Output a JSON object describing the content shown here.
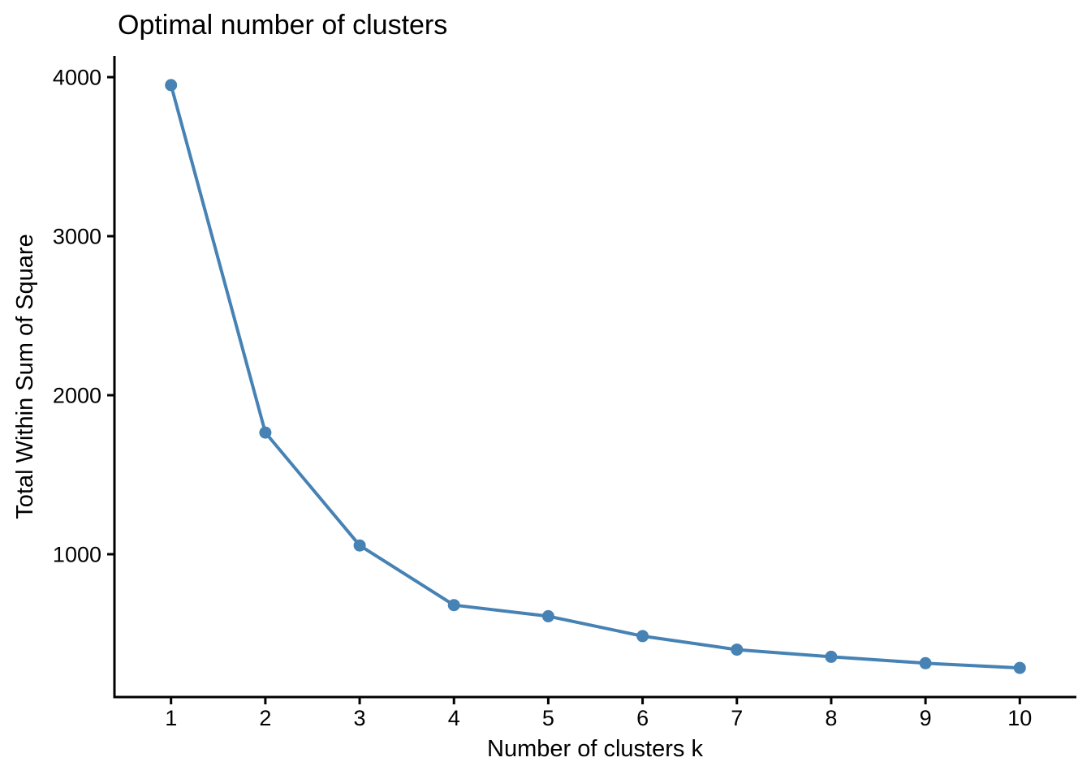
{
  "figure": {
    "title": "Optimal number of clusters",
    "xlabel": "Number of clusters k",
    "ylabel": "Total Within Sum of Square"
  },
  "chart_data": {
    "type": "line",
    "title": "Optimal number of clusters",
    "xlabel": "Number of clusters k",
    "ylabel": "Total Within Sum of Square",
    "x": [
      1,
      2,
      3,
      4,
      5,
      6,
      7,
      8,
      9,
      10
    ],
    "y": [
      3950,
      1765,
      1055,
      680,
      610,
      485,
      400,
      355,
      315,
      285
    ],
    "x_ticks": [
      "1",
      "2",
      "3",
      "4",
      "5",
      "6",
      "7",
      "8",
      "9",
      "10"
    ],
    "y_ticks": [
      "1000",
      "2000",
      "3000",
      "4000"
    ],
    "y_tick_values": [
      1000,
      2000,
      3000,
      4000
    ],
    "x_tick_values": [
      1,
      2,
      3,
      4,
      5,
      6,
      7,
      8,
      9,
      10
    ],
    "xlim": [
      0.4,
      10.6
    ],
    "ylim": [
      102,
      4133
    ],
    "grid": false,
    "legend": false,
    "line_color": "#4682B4",
    "point_color": "#4682B4",
    "axis_color": "#000000",
    "text_color": "#000000",
    "background_color": "#ffffff"
  }
}
